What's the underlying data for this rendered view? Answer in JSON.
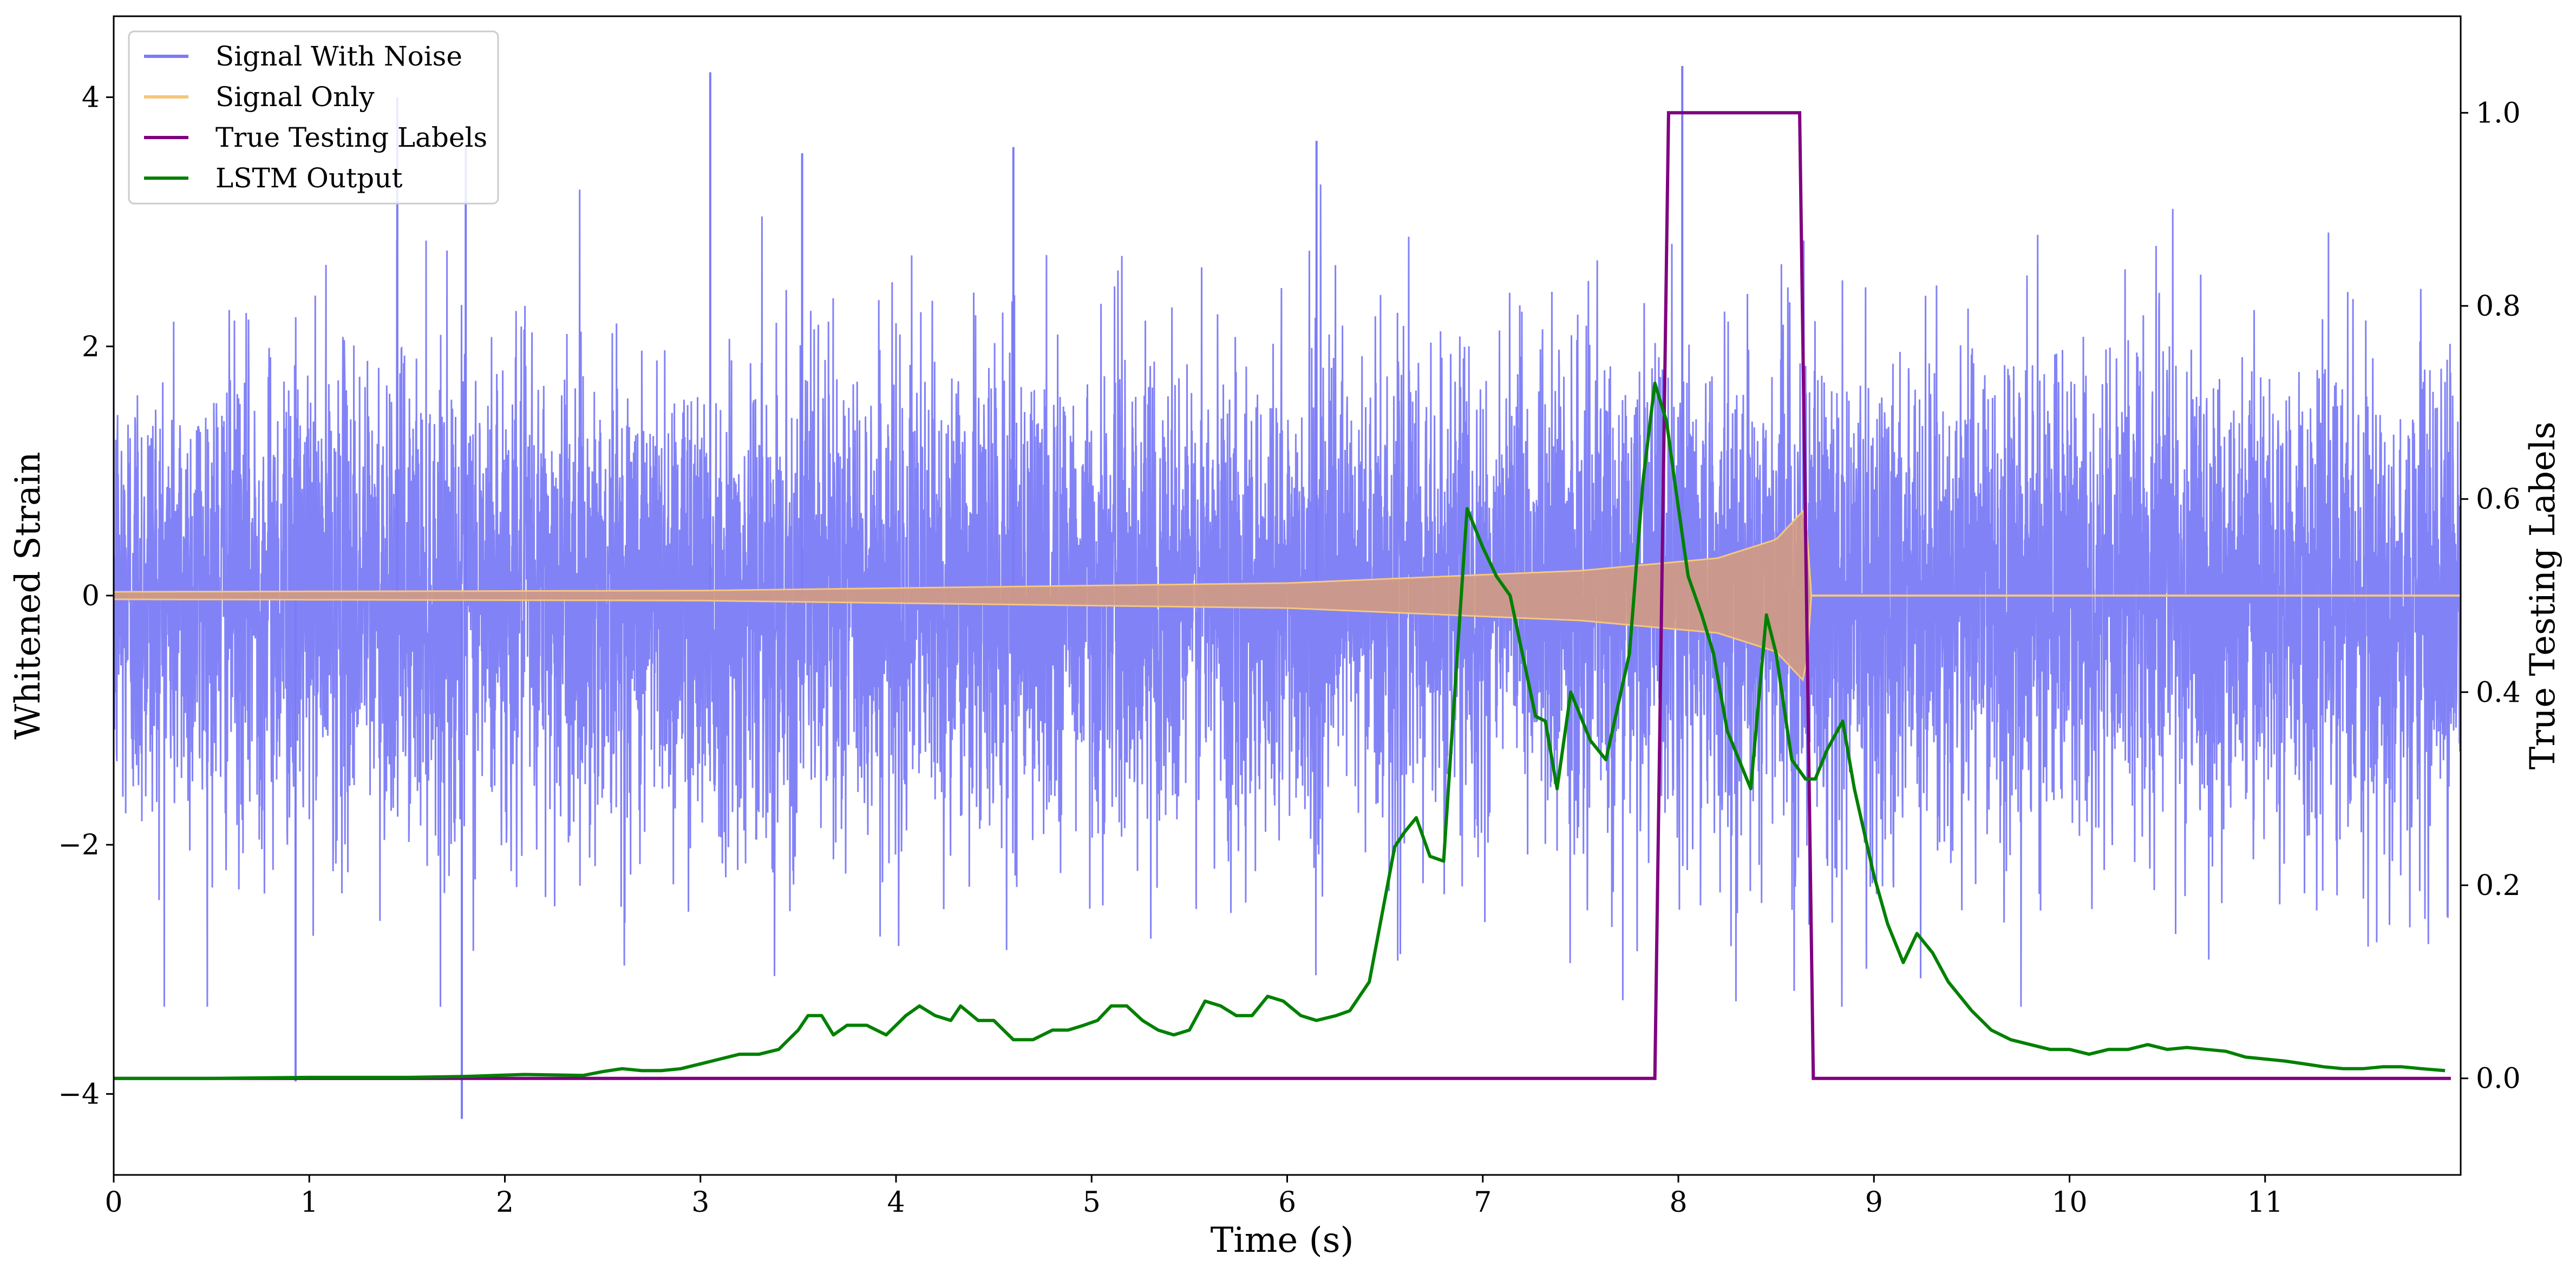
{
  "chart_data": {
    "type": "line",
    "title": "",
    "xlabel": "Time (s)",
    "ylabel_left": "Whitened Strain",
    "ylabel_right": "True Testing Labels",
    "xlim": [
      0,
      12.0
    ],
    "ylim_left": [
      -4.65,
      4.65
    ],
    "ylim_right": [
      -0.1,
      1.1
    ],
    "x_ticks": [
      "0",
      "1",
      "2",
      "3",
      "4",
      "5",
      "6",
      "7",
      "8",
      "9",
      "10",
      "11"
    ],
    "y_left_ticks": [
      "−4",
      "−2",
      "0",
      "2",
      "4"
    ],
    "y_right_ticks": [
      "0.0",
      "0.2",
      "0.4",
      "0.6",
      "0.8",
      "1.0"
    ],
    "legend_position": "top-left",
    "colors": {
      "noise": "#7b7bf7",
      "signal": "#f5c77a",
      "signal_fill": "#d39a82",
      "labels": "#800080",
      "lstm": "#008000"
    },
    "series": [
      {
        "name": "Signal With Noise",
        "axis": "left",
        "description": "whitened noisy strain, roughly within ±2.5, spikes to ±4.2",
        "peaks": [
          {
            "x": 0.93,
            "y": -3.9
          },
          {
            "x": 1.45,
            "y": 4.0
          },
          {
            "x": 1.78,
            "y": -4.2
          },
          {
            "x": 1.8,
            "y": 3.6
          },
          {
            "x": 3.05,
            "y": 4.2
          },
          {
            "x": 3.52,
            "y": 3.55
          },
          {
            "x": 4.6,
            "y": 3.6
          },
          {
            "x": 6.15,
            "y": 3.65
          },
          {
            "x": 8.02,
            "y": 4.25
          }
        ]
      },
      {
        "name": "Signal Only",
        "axis": "left",
        "chirp_start": 0,
        "merger_time": 8.68,
        "envelope": [
          {
            "x": 0,
            "y": 0.03
          },
          {
            "x": 3,
            "y": 0.04
          },
          {
            "x": 6,
            "y": 0.1
          },
          {
            "x": 7.5,
            "y": 0.2
          },
          {
            "x": 8.2,
            "y": 0.3
          },
          {
            "x": 8.5,
            "y": 0.45
          },
          {
            "x": 8.65,
            "y": 0.7
          },
          {
            "x": 8.68,
            "y": 0.0
          }
        ]
      },
      {
        "name": "True Testing Labels",
        "axis": "right",
        "x": [
          0,
          7.88,
          7.95,
          8.62,
          8.69,
          11.95
        ],
        "y": [
          0,
          0,
          1,
          1,
          0,
          0
        ]
      },
      {
        "name": "LSTM Output",
        "axis": "right",
        "x": [
          0,
          0.5,
          1.0,
          1.5,
          1.8,
          1.95,
          2.1,
          2.4,
          2.5,
          2.6,
          2.7,
          2.8,
          2.9,
          3.0,
          3.1,
          3.2,
          3.3,
          3.4,
          3.5,
          3.55,
          3.62,
          3.68,
          3.75,
          3.85,
          3.95,
          4.05,
          4.12,
          4.2,
          4.28,
          4.33,
          4.42,
          4.5,
          4.6,
          4.7,
          4.8,
          4.88,
          4.96,
          5.03,
          5.1,
          5.18,
          5.26,
          5.34,
          5.42,
          5.5,
          5.58,
          5.66,
          5.74,
          5.82,
          5.9,
          5.98,
          6.07,
          6.15,
          6.25,
          6.32,
          6.42,
          6.55,
          6.6,
          6.66,
          6.73,
          6.8,
          6.85,
          6.92,
          7.0,
          7.07,
          7.14,
          7.27,
          7.32,
          7.38,
          7.45,
          7.55,
          7.63,
          7.75,
          7.82,
          7.88,
          7.94,
          7.98,
          8.05,
          8.12,
          8.18,
          8.25,
          8.37,
          8.45,
          8.5,
          8.58,
          8.65,
          8.7,
          8.76,
          8.84,
          8.9,
          9.0,
          9.07,
          9.15,
          9.22,
          9.3,
          9.38,
          9.5,
          9.6,
          9.7,
          9.8,
          9.9,
          10.0,
          10.1,
          10.2,
          10.3,
          10.4,
          10.5,
          10.6,
          10.7,
          10.8,
          10.9,
          11.0,
          11.1,
          11.2,
          11.3,
          11.4,
          11.5,
          11.6,
          11.7,
          11.8,
          11.92
        ],
        "y": [
          0.0,
          0.0,
          0.001,
          0.001,
          0.002,
          0.003,
          0.004,
          0.003,
          0.007,
          0.01,
          0.008,
          0.008,
          0.01,
          0.015,
          0.02,
          0.025,
          0.025,
          0.03,
          0.05,
          0.065,
          0.065,
          0.045,
          0.055,
          0.055,
          0.045,
          0.065,
          0.075,
          0.065,
          0.06,
          0.075,
          0.06,
          0.06,
          0.04,
          0.04,
          0.05,
          0.05,
          0.055,
          0.06,
          0.075,
          0.075,
          0.06,
          0.05,
          0.045,
          0.05,
          0.08,
          0.075,
          0.065,
          0.065,
          0.085,
          0.08,
          0.065,
          0.06,
          0.065,
          0.07,
          0.1,
          0.24,
          0.255,
          0.27,
          0.23,
          0.225,
          0.38,
          0.59,
          0.55,
          0.52,
          0.5,
          0.375,
          0.37,
          0.3,
          0.4,
          0.35,
          0.33,
          0.44,
          0.62,
          0.72,
          0.68,
          0.62,
          0.52,
          0.48,
          0.44,
          0.36,
          0.3,
          0.48,
          0.44,
          0.33,
          0.31,
          0.31,
          0.34,
          0.37,
          0.3,
          0.21,
          0.16,
          0.12,
          0.15,
          0.13,
          0.1,
          0.07,
          0.05,
          0.04,
          0.035,
          0.03,
          0.03,
          0.025,
          0.03,
          0.03,
          0.035,
          0.03,
          0.032,
          0.03,
          0.028,
          0.022,
          0.02,
          0.018,
          0.015,
          0.012,
          0.01,
          0.01,
          0.012,
          0.012,
          0.01,
          0.008
        ]
      }
    ],
    "legend": [
      "Signal With Noise",
      "Signal Only",
      "True Testing Labels",
      "LSTM Output"
    ]
  }
}
